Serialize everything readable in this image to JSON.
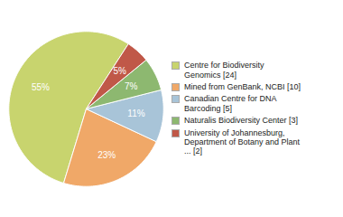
{
  "chart_data": {
    "type": "pie",
    "labels": [
      "Centre for Biodiversity\nGenomics [24]",
      "Mined from GenBank, NCBI [10]",
      "Canadian Centre for DNA\nBarcoding [5]",
      "Naturalis Biodiversity Center [3]",
      "University of Johannesburg,\nDepartment of Botany and Plant\n... [2]"
    ],
    "values": [
      55,
      23,
      11,
      7,
      5
    ],
    "value_labels": [
      "55%",
      "23%",
      "11%",
      "7%",
      "5%"
    ],
    "colors": [
      "#c8d46e",
      "#f0a868",
      "#a8c4d8",
      "#8db870",
      "#c05848"
    ],
    "data_labels": true,
    "legend": "right"
  }
}
